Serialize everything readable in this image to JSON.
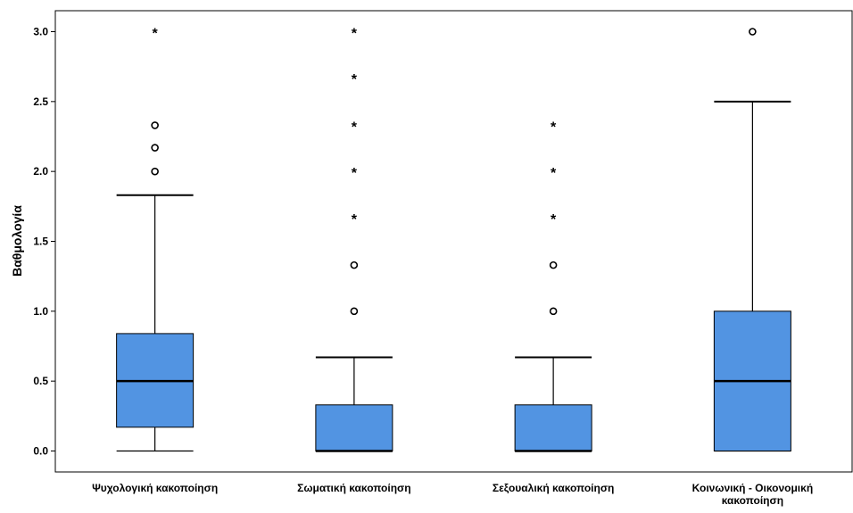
{
  "chart_data": {
    "type": "boxplot",
    "title": "",
    "xlabel": "",
    "ylabel": "Βαθμολογία",
    "ylim": [
      -0.15,
      3.15
    ],
    "yticks": [
      "0.0",
      "0.5",
      "1.0",
      "1.5",
      "2.0",
      "2.5",
      "3.0"
    ],
    "grid": false,
    "legend": "none",
    "box_color": "#5294E2",
    "categories": [
      [
        "Ψυχολογική κακοποίηση"
      ],
      [
        "Σωματική κακοποίηση"
      ],
      [
        "Σεξουαλική κακοποίηση"
      ],
      [
        "Κοινωνική - Οικονομική",
        "κακοποίηση"
      ]
    ],
    "boxes": [
      {
        "min": 0.0,
        "q1": 0.17,
        "median": 0.5,
        "q3": 0.84,
        "max": 1.83,
        "outliers": [
          2.0,
          2.17,
          2.33
        ],
        "extremes": [
          3.0
        ]
      },
      {
        "min": 0.0,
        "q1": 0.0,
        "median": 0.0,
        "q3": 0.33,
        "max": 0.67,
        "outliers": [
          1.0,
          1.33
        ],
        "extremes": [
          1.67,
          2.0,
          2.33,
          2.67,
          3.0
        ]
      },
      {
        "min": 0.0,
        "q1": 0.0,
        "median": 0.0,
        "q3": 0.33,
        "max": 0.67,
        "outliers": [
          1.0,
          1.33
        ],
        "extremes": [
          1.67,
          2.0,
          2.33
        ]
      },
      {
        "min": 0.0,
        "q1": 0.0,
        "median": 0.5,
        "q3": 1.0,
        "max": 2.5,
        "outliers": [
          3.0
        ],
        "extremes": []
      }
    ]
  }
}
